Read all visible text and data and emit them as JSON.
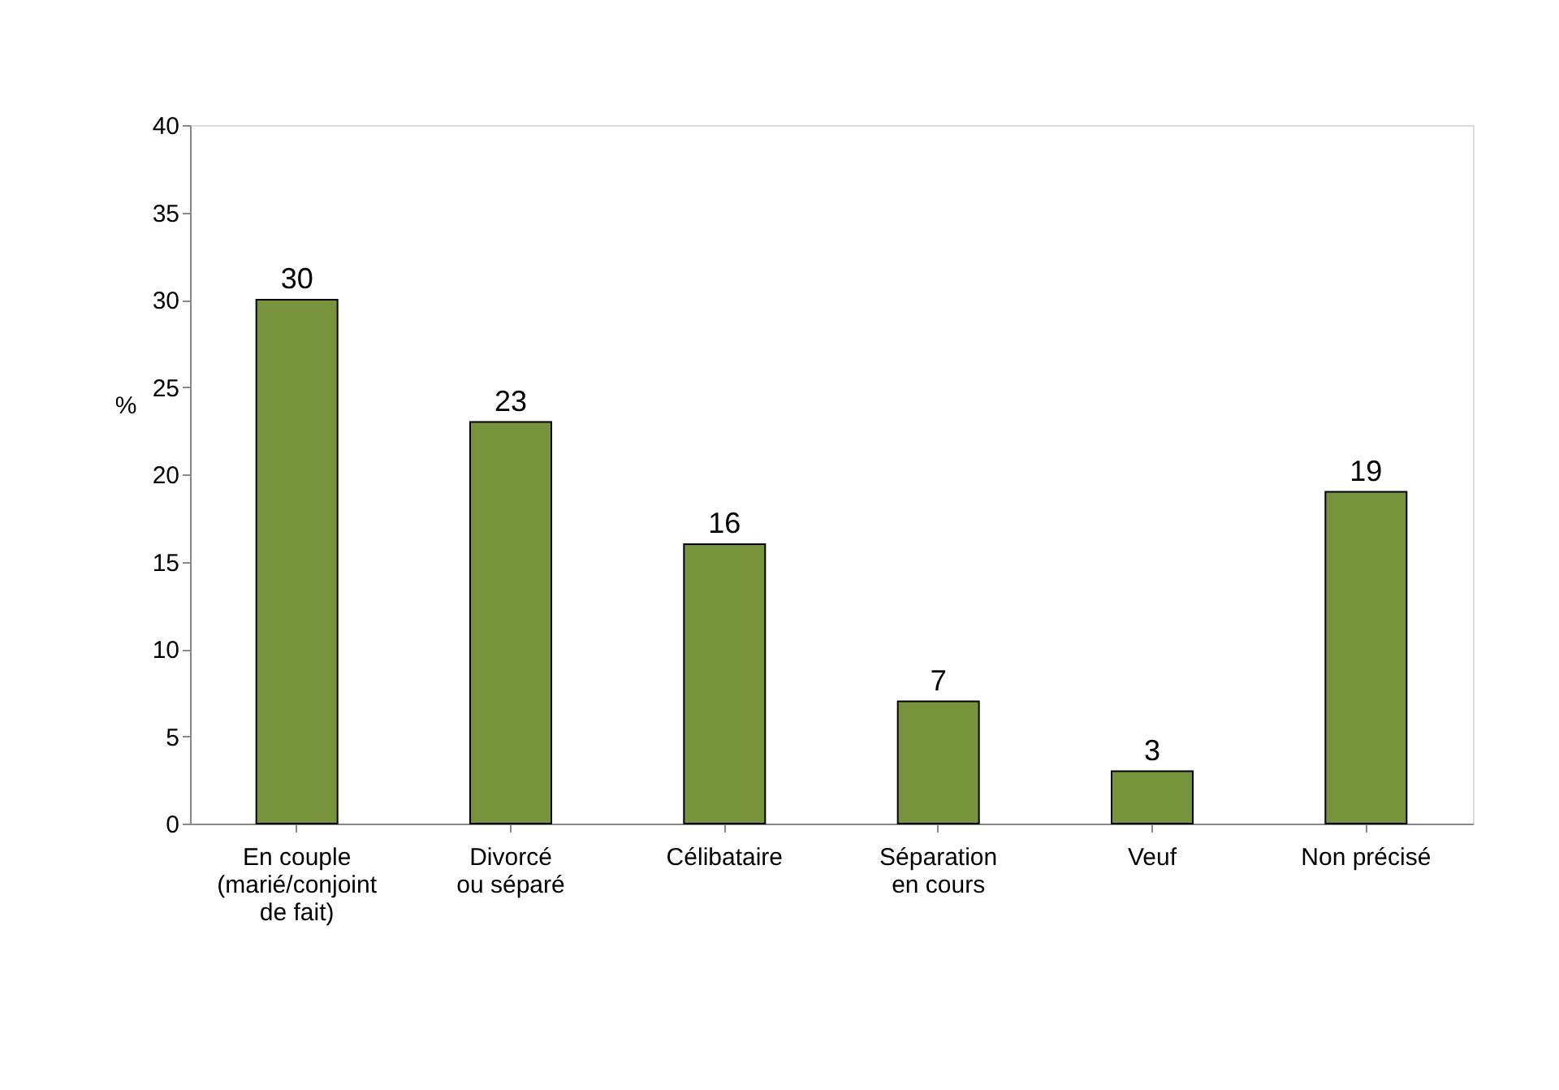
{
  "chart_data": {
    "type": "bar",
    "categories": [
      "En couple\n(marié/conjoint\nde fait)",
      "Divorcé\nou séparé",
      "Célibataire",
      "Séparation\nen cours",
      "Veuf",
      "Non précisé"
    ],
    "values": [
      30,
      23,
      16,
      7,
      3,
      19
    ],
    "color": "#77933c",
    "ylabel": "%",
    "ylim": [
      0,
      40
    ],
    "yticks": [
      0,
      5,
      10,
      15,
      20,
      25,
      30,
      35,
      40
    ],
    "grid": false,
    "data_labels": true
  }
}
